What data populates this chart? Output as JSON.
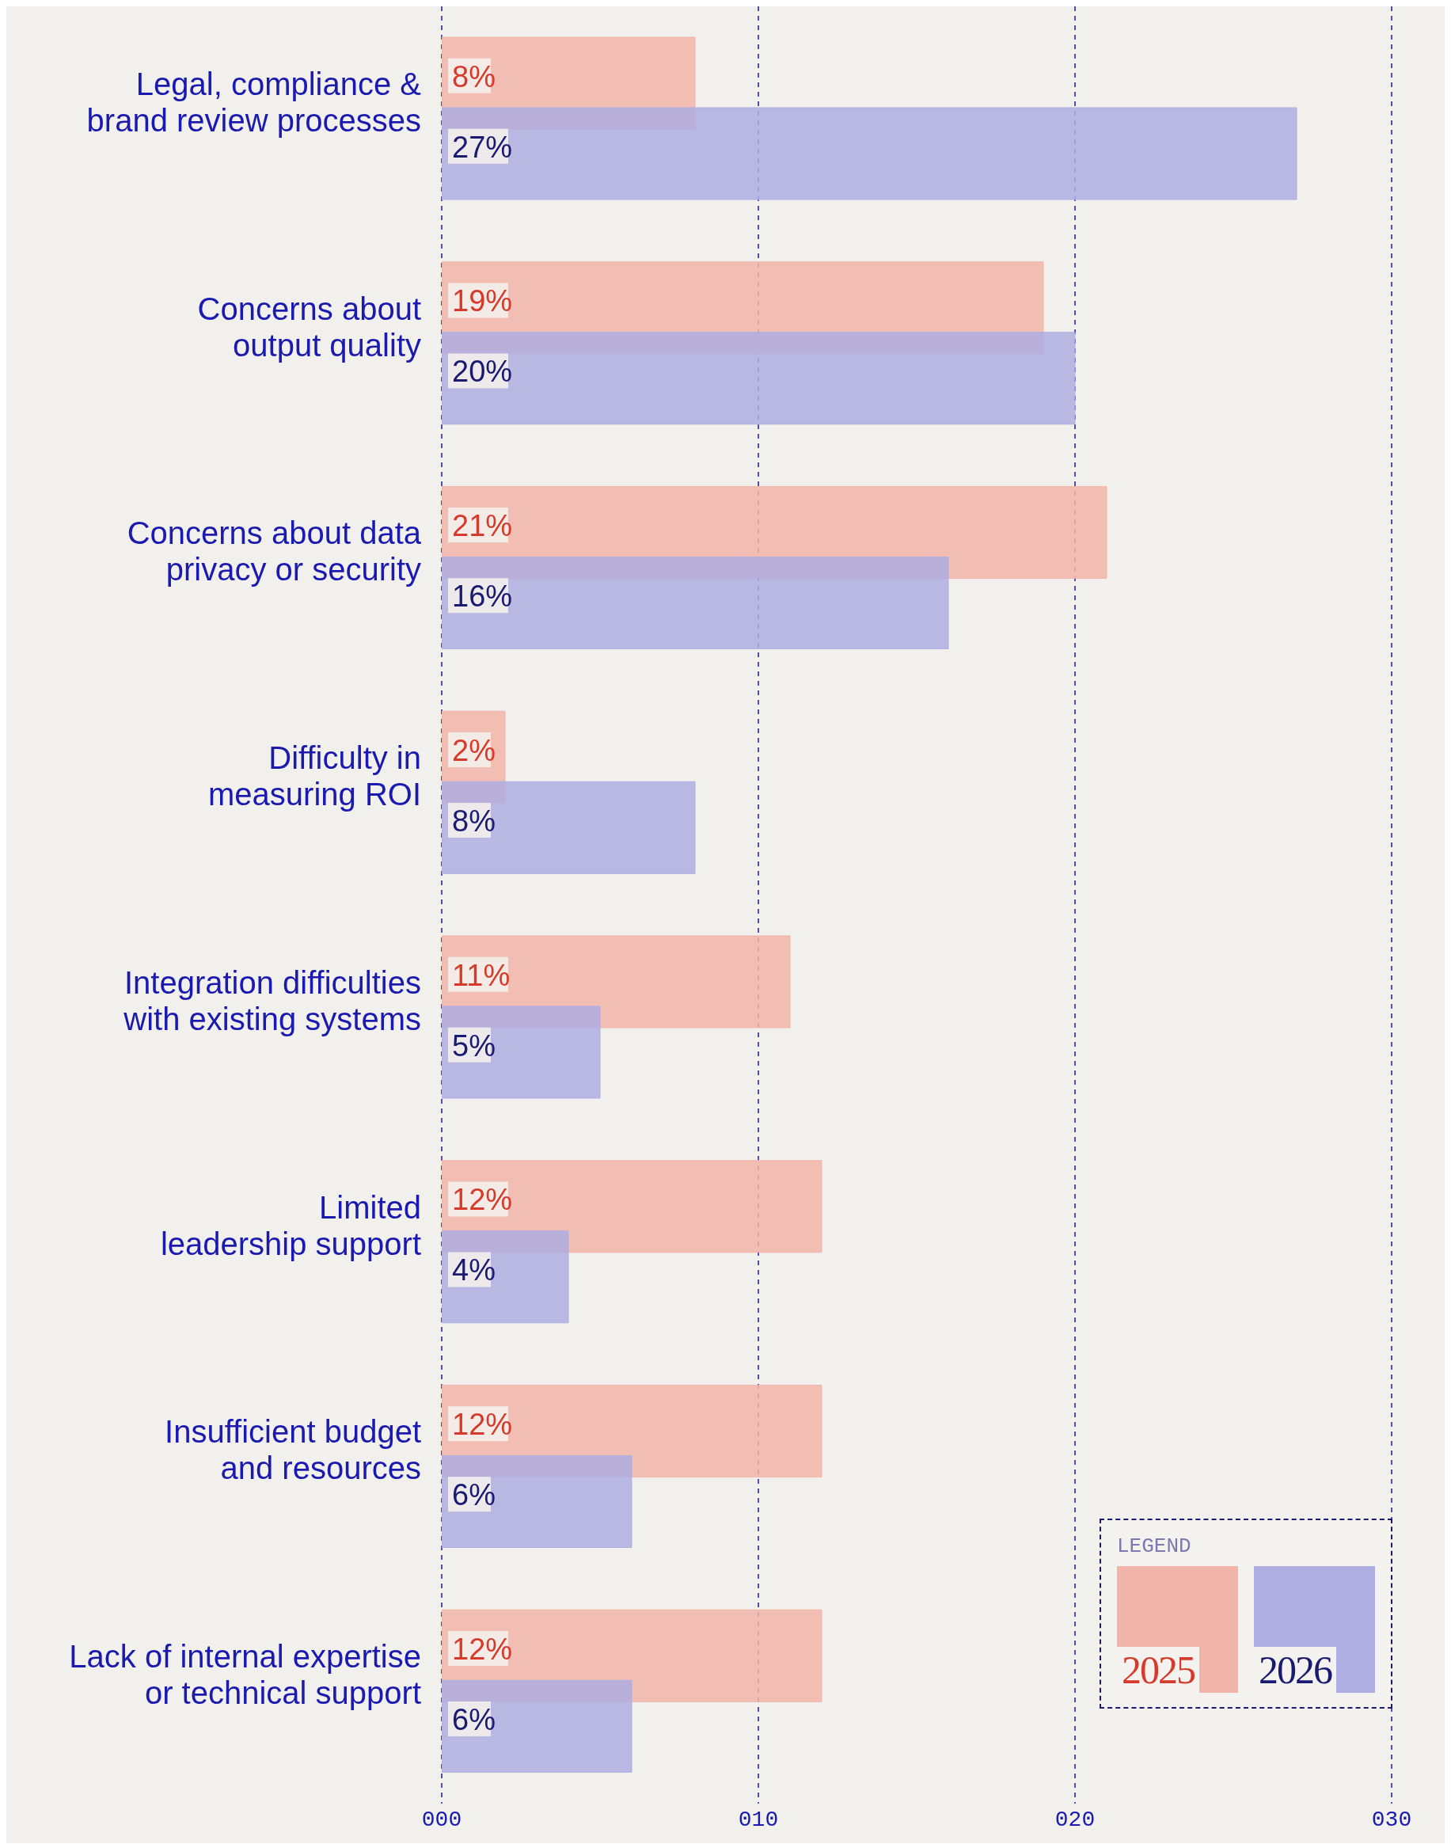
{
  "chart_data": {
    "type": "bar",
    "orientation": "horizontal",
    "categories": [
      "Legal, compliance & brand review processes",
      "Concerns about output quality",
      "Concerns about data privacy or security",
      "Difficulty in measuring ROI",
      "Integration difficulties with existing systems",
      "Limited leadership support",
      "Insufficient budget and resources",
      "Lack of internal expertise or technical support"
    ],
    "series": [
      {
        "name": "2025",
        "color": "#f2b4a8",
        "values": [
          8,
          19,
          21,
          2,
          11,
          12,
          12,
          12
        ],
        "value_labels": [
          "8%",
          "19%",
          "21%",
          "2%",
          "11%",
          "12%",
          "12%",
          "12%"
        ]
      },
      {
        "name": "2026",
        "color": "#aeaee2",
        "values": [
          27,
          20,
          16,
          8,
          5,
          4,
          6,
          6
        ],
        "value_labels": [
          "27%",
          "20%",
          "16%",
          "8%",
          "5%",
          "4%",
          "6%",
          "6%"
        ]
      }
    ],
    "xlim": [
      0,
      30
    ],
    "xticks": [
      {
        "value": 0,
        "label": "000"
      },
      {
        "value": 10,
        "label": "010"
      },
      {
        "value": 20,
        "label": "020"
      },
      {
        "value": 30,
        "label": "030"
      }
    ],
    "grid": "x",
    "legend": "bottom right",
    "legend_title": "LEGEND"
  }
}
